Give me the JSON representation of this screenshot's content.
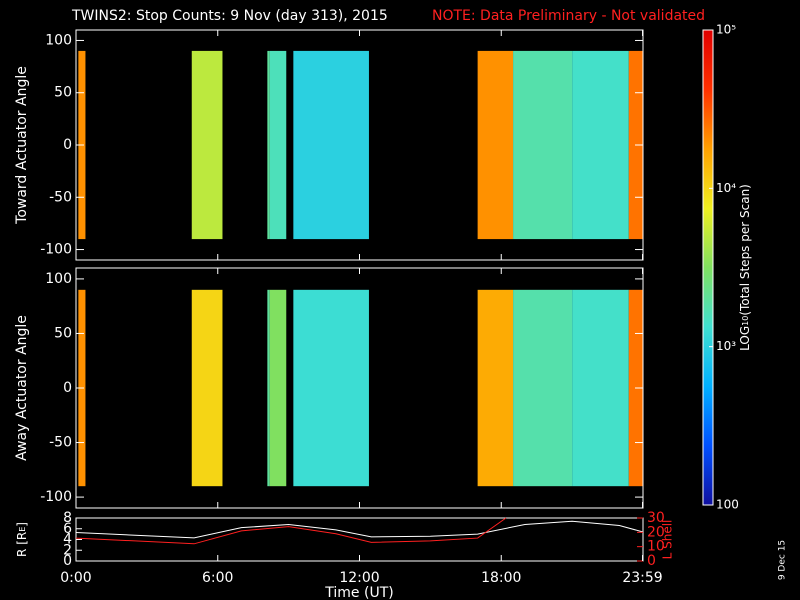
{
  "chart_data": [
    {
      "type": "heatmap",
      "title": "TWINS2: Stop Counts:  9 Nov (day 313), 2015",
      "note": "NOTE: Data Preliminary - Not validated",
      "ylabel": "Toward Actuator Angle",
      "xlim": [
        0,
        24
      ],
      "ylim": [
        -110,
        110
      ],
      "yticks": [
        100,
        50,
        0,
        -50,
        -100
      ],
      "angle_range": [
        -90,
        90
      ],
      "segments": [
        {
          "x": [
            0.1,
            0.4
          ],
          "value": 4.3
        },
        {
          "x": [
            4.9,
            6.2
          ],
          "value": 3.7
        },
        {
          "x": [
            8.1,
            8.2
          ],
          "value": 3.3
        },
        {
          "x": [
            8.2,
            8.9
          ],
          "value": 3.2
        },
        {
          "x": [
            9.2,
            12.4
          ],
          "value": 3.0
        },
        {
          "x": [
            17.0,
            18.5
          ],
          "value": 4.3
        },
        {
          "x": [
            18.5,
            21.0
          ],
          "value": 3.25
        },
        {
          "x": [
            21.0,
            23.4
          ],
          "value": 3.15
        },
        {
          "x": [
            23.4,
            24.0
          ],
          "value": 4.4
        }
      ]
    },
    {
      "type": "heatmap",
      "ylabel": "Away Actuator Angle",
      "xlim": [
        0,
        24
      ],
      "ylim": [
        -110,
        110
      ],
      "yticks": [
        100,
        50,
        0,
        -50,
        -100
      ],
      "angle_range": [
        -90,
        90
      ],
      "segments": [
        {
          "x": [
            0.1,
            0.4
          ],
          "value": 4.3
        },
        {
          "x": [
            4.9,
            6.2
          ],
          "value": 4.0
        },
        {
          "x": [
            8.1,
            8.2
          ],
          "value": 3.3
        },
        {
          "x": [
            8.2,
            8.9
          ],
          "value": 3.5
        },
        {
          "x": [
            9.2,
            12.4
          ],
          "value": 3.1
        },
        {
          "x": [
            17.0,
            18.5
          ],
          "value": 4.2
        },
        {
          "x": [
            18.5,
            21.0
          ],
          "value": 3.25
        },
        {
          "x": [
            21.0,
            23.4
          ],
          "value": 3.15
        },
        {
          "x": [
            23.4,
            24.0
          ],
          "value": 4.4
        }
      ]
    },
    {
      "type": "line",
      "xlabel": "Time (UT)",
      "ylabel": "R [R",
      "ylabel_sub": "E",
      "y2label": "L Shell",
      "xlim": [
        0,
        24
      ],
      "xticks": [
        {
          "value": 0,
          "label": "0:00"
        },
        {
          "value": 6,
          "label": "6:00"
        },
        {
          "value": 12,
          "label": "12:00"
        },
        {
          "value": 18,
          "label": "18:00"
        },
        {
          "value": 23.98,
          "label": "23:59"
        }
      ],
      "ylim": [
        0,
        8
      ],
      "yticks": [
        0,
        2,
        4,
        6,
        8
      ],
      "y2lim": [
        0,
        30
      ],
      "y2ticks": [
        0,
        10,
        20,
        30
      ],
      "series": [
        {
          "name": "R",
          "color": "#ffffff",
          "x": [
            0,
            2.5,
            5,
            7,
            9,
            11,
            12.5,
            15,
            17,
            19,
            21,
            23,
            24
          ],
          "values": [
            5.3,
            4.8,
            4.3,
            6.2,
            6.8,
            5.8,
            4.5,
            4.6,
            5,
            6.8,
            7.4,
            6.6,
            5.4
          ]
        },
        {
          "name": "L Shell",
          "color": "#ff2020",
          "axis": "y2",
          "x": [
            0,
            2.5,
            5,
            7,
            9,
            11,
            12.5,
            15,
            17,
            18.2
          ],
          "values": [
            16,
            14,
            12,
            21,
            24,
            19,
            13,
            14,
            16,
            30
          ]
        }
      ]
    },
    {
      "type": "colorbar",
      "label": "LOG",
      "label_sub": "10",
      "label_rest": "(Total Steps per Scan)",
      "lim": [
        2,
        5
      ],
      "ticks": [
        {
          "value": 5,
          "label": "10⁵"
        },
        {
          "value": 4,
          "label": "10⁴"
        },
        {
          "value": 3,
          "label": "10³"
        },
        {
          "value": 2,
          "label": "100"
        }
      ],
      "colormap": [
        "#1010a0",
        "#0050ff",
        "#00b0ff",
        "#40e0d0",
        "#80e060",
        "#f0f020",
        "#ffa000",
        "#ff3000",
        "#e00000"
      ]
    },
    {
      "type": "stamp",
      "text": "9 Dec 15"
    }
  ]
}
